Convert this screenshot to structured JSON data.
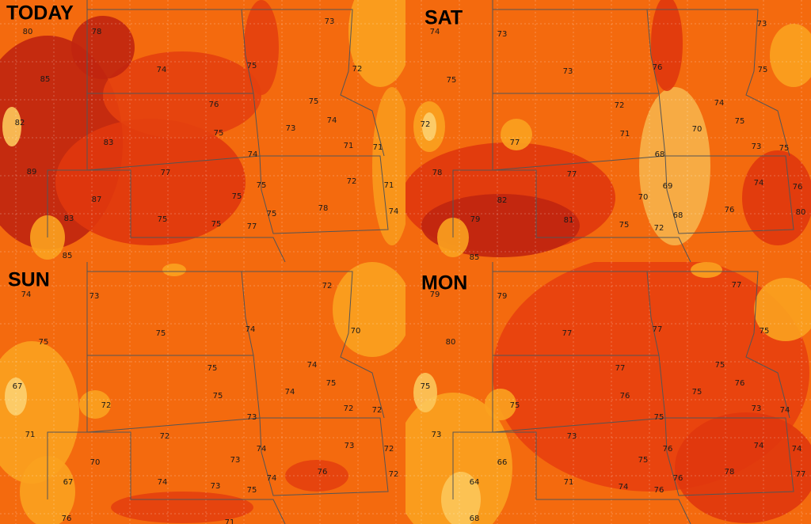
{
  "panels": [
    {
      "title": "TODAY",
      "labels": [
        80,
        78,
        74,
        75,
        73,
        72,
        85,
        76,
        75,
        74,
        73,
        82,
        83,
        75,
        71,
        71,
        74,
        89,
        77,
        72,
        71,
        75,
        87,
        75,
        78,
        74,
        75,
        83,
        75,
        75,
        77,
        85
      ]
    },
    {
      "title": "SAT",
      "labels": [
        74,
        73,
        73,
        76,
        73,
        75,
        75,
        72,
        74,
        75,
        70,
        72,
        71,
        77,
        73,
        75,
        68,
        78,
        77,
        74,
        76,
        69,
        70,
        82,
        76,
        80,
        68,
        79,
        81,
        75,
        72,
        85
      ]
    },
    {
      "title": "SUN",
      "labels": [
        74,
        73,
        72,
        75,
        74,
        70,
        75,
        75,
        74,
        75,
        74,
        67,
        75,
        72,
        72,
        72,
        73,
        71,
        72,
        73,
        72,
        74,
        70,
        73,
        76,
        72,
        74,
        67,
        74,
        73,
        75,
        76,
        71
      ]
    },
    {
      "title": "MON",
      "labels": [
        79,
        79,
        77,
        77,
        77,
        75,
        80,
        77,
        75,
        76,
        75,
        75,
        76,
        75,
        73,
        74,
        75,
        73,
        73,
        74,
        74,
        76,
        75,
        66,
        76,
        78,
        77,
        64,
        71,
        74,
        76,
        68
      ]
    }
  ]
}
